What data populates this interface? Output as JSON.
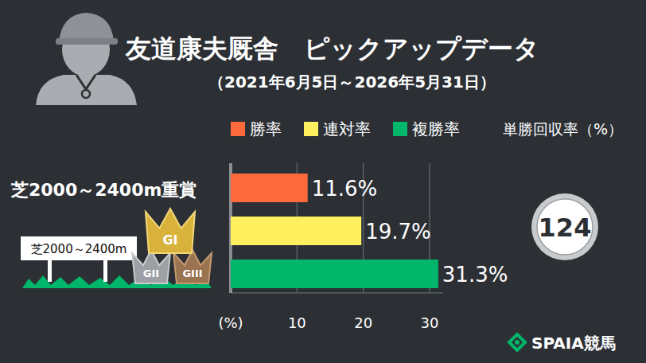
{
  "chart_data": {
    "type": "bar",
    "orientation": "horizontal",
    "title": "友道康夫厩舎　ピックアップデータ",
    "subtitle": "（2021年6月5日～2026年5月31日）",
    "categories": [
      "芝2000～2400m重賞"
    ],
    "series": [
      {
        "name": "勝率",
        "color": "#ff6a3d",
        "values": [
          11.6
        ],
        "value_labels": [
          "11.6%"
        ]
      },
      {
        "name": "連対率",
        "color": "#fff060",
        "values": [
          19.7
        ],
        "value_labels": [
          "19.7%"
        ]
      },
      {
        "name": "複勝率",
        "color": "#00b66a",
        "values": [
          31.3
        ],
        "value_labels": [
          "31.3%"
        ]
      }
    ],
    "xlim": [
      0,
      32
    ],
    "xticks": [
      {
        "value": 0,
        "label": "(%)"
      },
      10,
      20,
      30
    ],
    "grid": true,
    "data_labels": true,
    "legend": "top"
  },
  "return_rate": {
    "label": "単勝回収率（%）",
    "value": 124
  },
  "illustration": {
    "sign": "芝2000～2400m",
    "grades": [
      "GI",
      "GII",
      "GIII"
    ]
  },
  "brand": "SPAIA競馬"
}
